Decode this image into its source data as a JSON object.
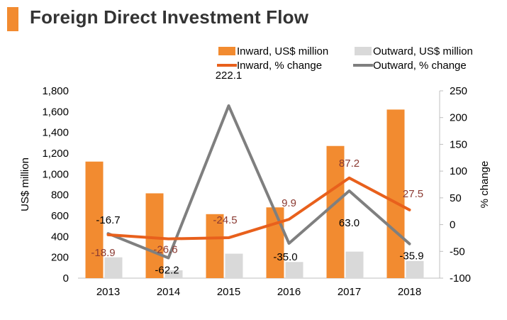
{
  "title": "Foreign Direct Investment Flow",
  "chart_data": {
    "type": "bar",
    "categories": [
      "2013",
      "2014",
      "2015",
      "2016",
      "2017",
      "2018"
    ],
    "series": [
      {
        "name": "Inward, US$ million",
        "type": "bar",
        "axis": "left",
        "color": "#f28b30",
        "values": [
          1120,
          815,
          615,
          680,
          1270,
          1620
        ]
      },
      {
        "name": "Outward, US$ million",
        "type": "bar",
        "axis": "left",
        "color": "#d9d9d9",
        "values": [
          200,
          75,
          235,
          155,
          255,
          165
        ]
      },
      {
        "name": "Inward, % change",
        "type": "line",
        "axis": "right",
        "color": "#e8601c",
        "values": [
          -18.9,
          -26.6,
          -24.5,
          9.9,
          87.2,
          27.5
        ],
        "labels": [
          "-18.9",
          "-26.6",
          "-24.5",
          "9.9",
          "87.2",
          "27.5"
        ]
      },
      {
        "name": "Outward, % change",
        "type": "line",
        "axis": "right",
        "color": "#7f7f7f",
        "values": [
          -16.7,
          -62.2,
          222.1,
          -35.0,
          63.0,
          -35.9
        ],
        "labels": [
          "-16.7",
          "-62.2",
          "222.1",
          "-35.0",
          "63.0",
          "-35.9"
        ]
      }
    ],
    "ylabel": "US$ million",
    "y2label": "% change",
    "ylim": [
      0,
      1800
    ],
    "y2lim": [
      -100,
      250
    ],
    "yticks": [
      "0",
      "200",
      "400",
      "600",
      "800",
      "1,000",
      "1,200",
      "1,400",
      "1,600",
      "1,800"
    ],
    "y2ticks": [
      "-100",
      "-50",
      "0",
      "50",
      "100",
      "150",
      "200",
      "250"
    ],
    "legend_position": "top",
    "grid": false
  }
}
